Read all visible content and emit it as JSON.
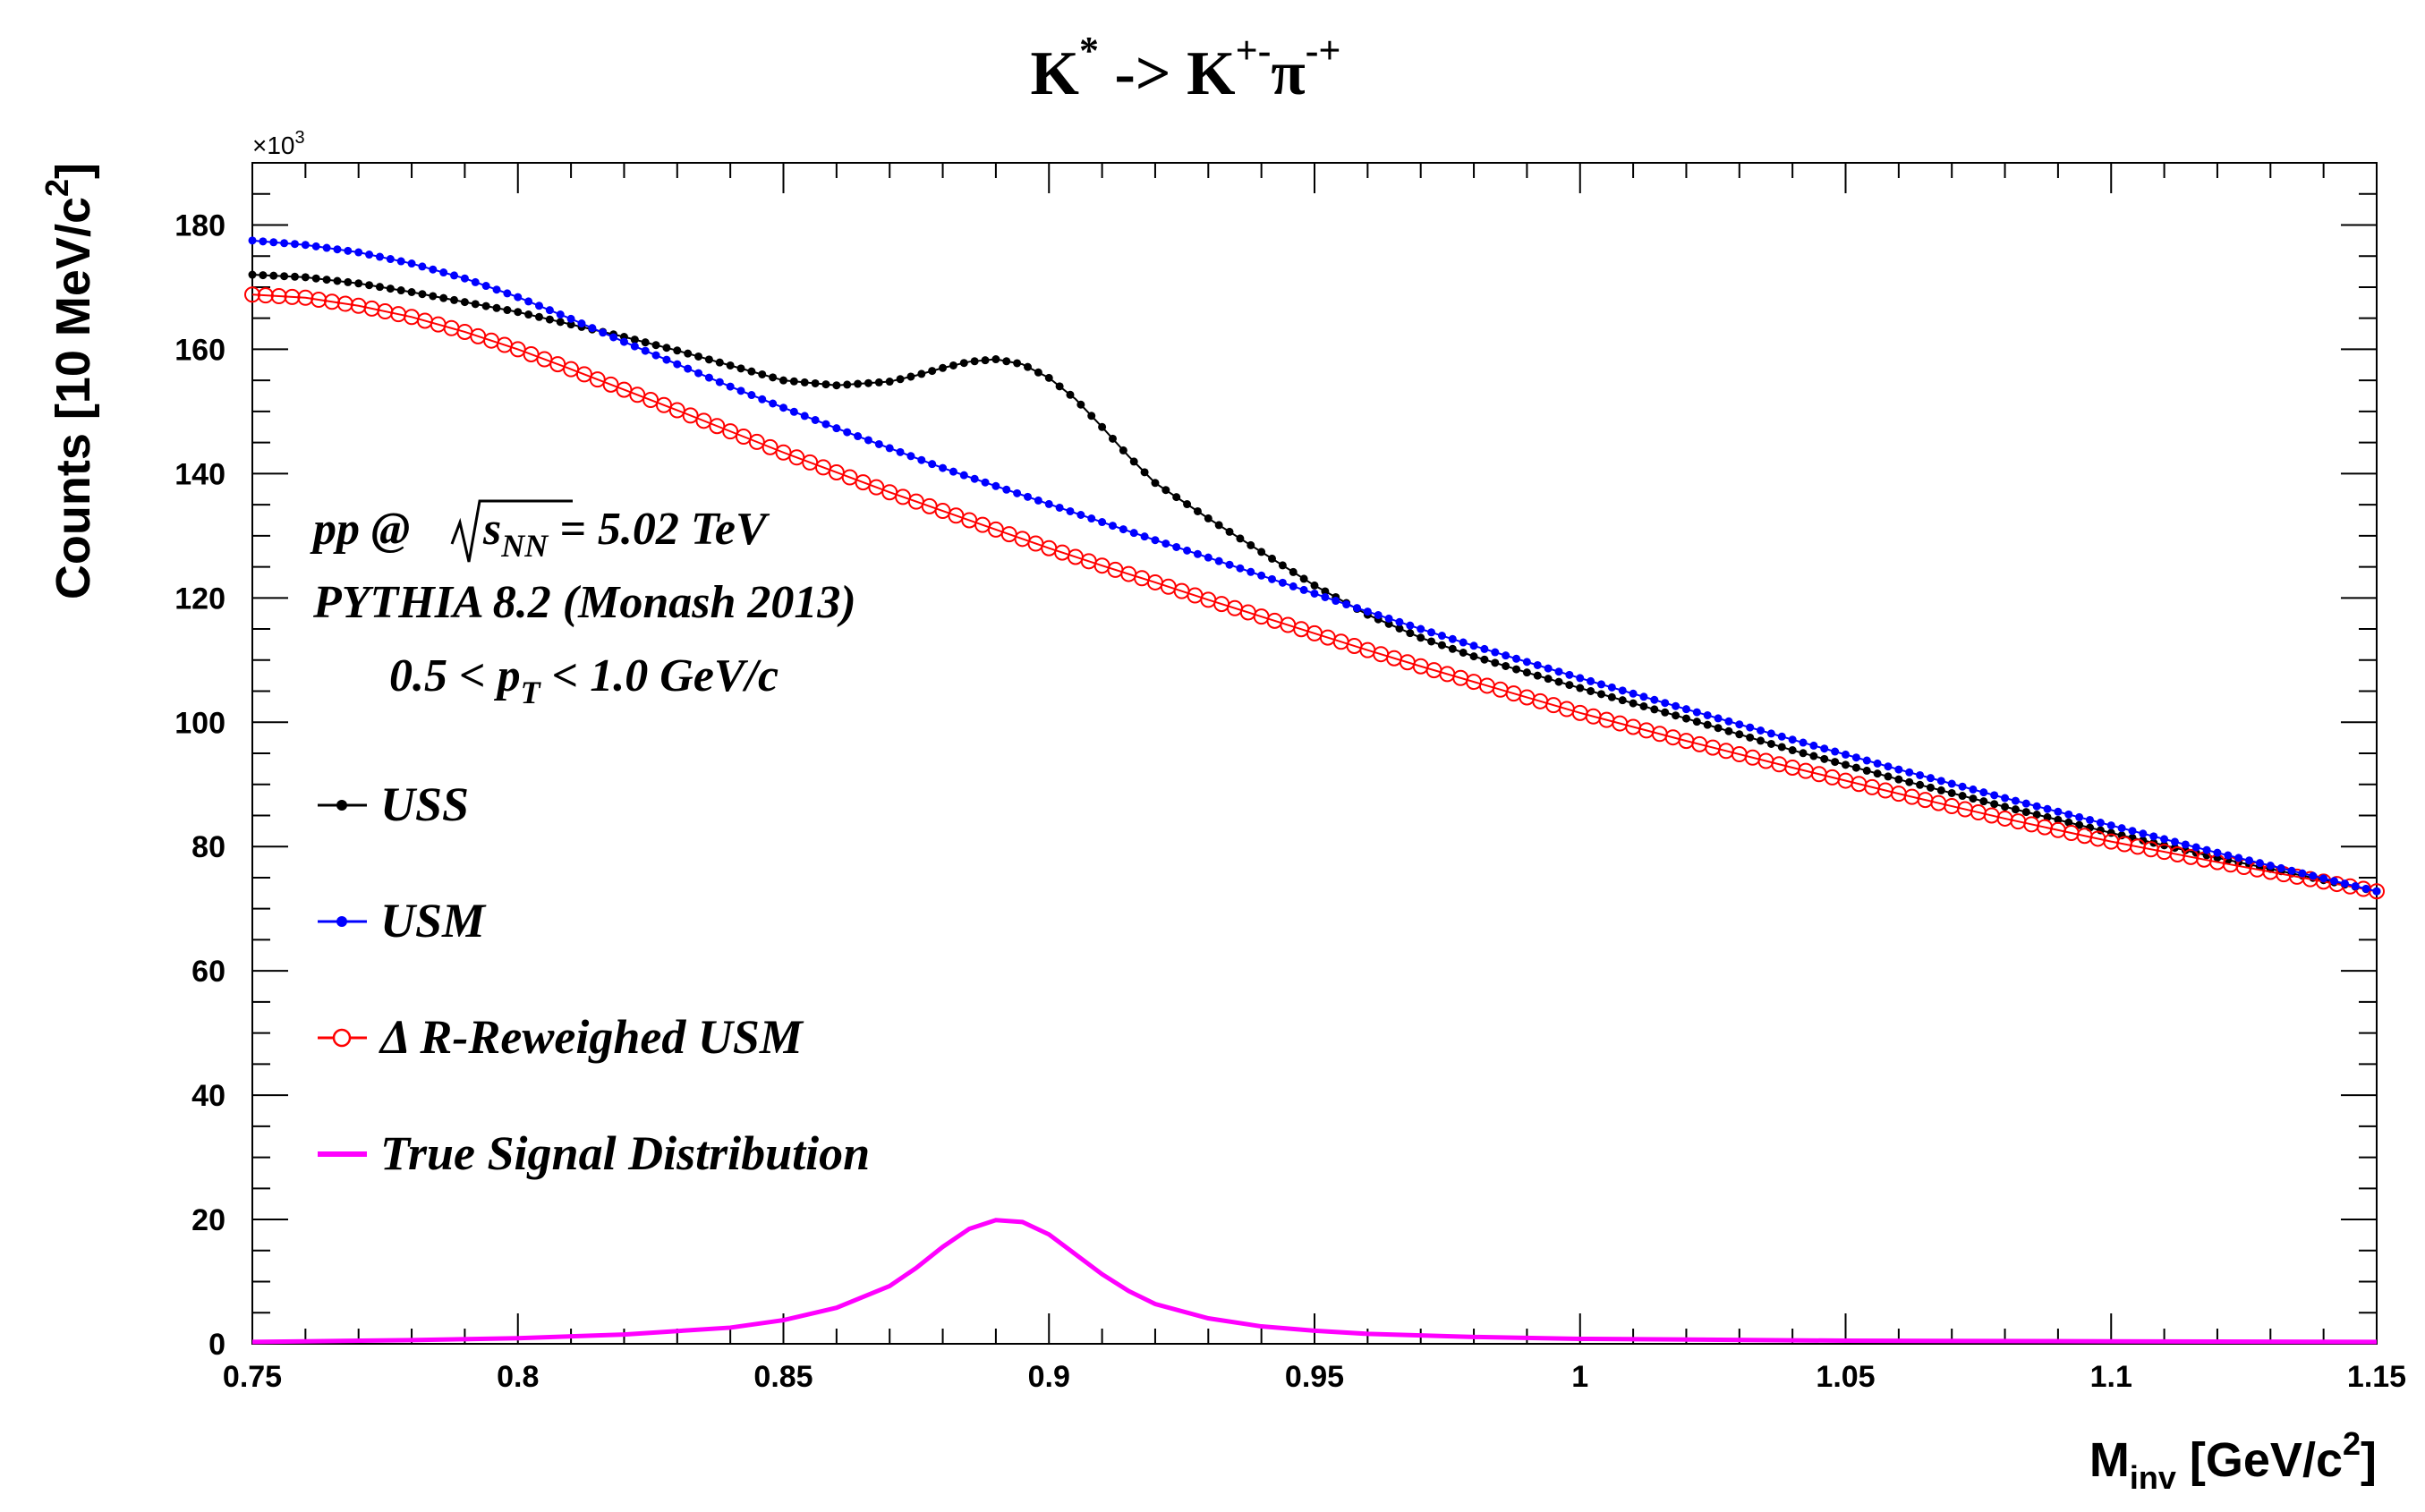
{
  "chart_data": {
    "type": "line",
    "title": {
      "main": "K",
      "sup": "*",
      "arrow": " -> K",
      "sup2": "+-",
      "pi": "π",
      "sup3": "-+"
    },
    "xlabel": {
      "main": "M",
      "sub": "inv",
      "unit_start": " [GeV/c",
      "unit_sup": "2",
      "unit_end": "]"
    },
    "ylabel": {
      "main": "Counts [10 MeV/c",
      "sup": "2",
      "end": "]"
    },
    "y_multiplier": {
      "base": "×10",
      "exp": "3"
    },
    "xlim": [
      0.75,
      1.15
    ],
    "ylim": [
      0,
      190
    ],
    "x_ticks": [
      0.75,
      0.8,
      0.85,
      0.9,
      0.95,
      1.0,
      1.05,
      1.1,
      1.15
    ],
    "x_tick_labels": [
      "0.75",
      "0.8",
      "0.85",
      "0.9",
      "0.95",
      "1",
      "1.05",
      "1.1",
      "1.15"
    ],
    "y_ticks": [
      0,
      20,
      40,
      60,
      80,
      100,
      120,
      140,
      160,
      180
    ],
    "y_tick_labels": [
      "0",
      "20",
      "40",
      "60",
      "80",
      "100",
      "120",
      "140",
      "160",
      "180"
    ],
    "annotations": {
      "line1_pre": "pp @ ",
      "line1_sqrt_s": "s",
      "line1_sqrt_sub": "NN",
      "line1_post": " = 5.02 TeV",
      "line2": "PYTHIA 8.2 (Monash 2013)",
      "line3_pre": "0.5 < p",
      "line3_sub": "T",
      "line3_post": " < 1.0 GeV/c"
    },
    "legend": [
      {
        "label": "USS",
        "color": "#000000",
        "marker": "dot"
      },
      {
        "label": "USM",
        "color": "#0000ff",
        "marker": "dot"
      },
      {
        "label": "Δ R-Reweighed USM",
        "color": "#ff0000",
        "marker": "open-circle"
      },
      {
        "label": "True Signal Distribution",
        "color": "#ff00ff",
        "marker": "line"
      }
    ],
    "series": [
      {
        "name": "USS",
        "color": "#000000",
        "marker": "dot",
        "x": [
          0.75,
          0.76,
          0.77,
          0.78,
          0.79,
          0.8,
          0.81,
          0.82,
          0.83,
          0.84,
          0.85,
          0.86,
          0.87,
          0.875,
          0.88,
          0.885,
          0.89,
          0.895,
          0.9,
          0.905,
          0.91,
          0.915,
          0.92,
          0.93,
          0.94,
          0.95,
          0.96,
          0.97,
          0.98,
          0.99,
          1.0,
          1.02,
          1.04,
          1.06,
          1.08,
          1.1,
          1.12,
          1.15
        ],
        "y": [
          172.0,
          171.6,
          170.6,
          169.2,
          167.6,
          166.0,
          164.0,
          162.0,
          159.8,
          157.4,
          155.0,
          154.2,
          154.8,
          155.8,
          157.0,
          158.0,
          158.4,
          157.6,
          155.4,
          152.0,
          147.5,
          142.8,
          138.5,
          132.8,
          127.4,
          122.0,
          117.3,
          113.6,
          110.6,
          108.0,
          105.5,
          100.6,
          95.5,
          90.8,
          86.4,
          82.2,
          78.2,
          72.8
        ]
      },
      {
        "name": "USM",
        "color": "#0000ff",
        "marker": "dot",
        "x": [
          0.75,
          0.76,
          0.77,
          0.78,
          0.79,
          0.8,
          0.81,
          0.82,
          0.83,
          0.84,
          0.85,
          0.86,
          0.87,
          0.88,
          0.89,
          0.9,
          0.91,
          0.92,
          0.93,
          0.94,
          0.95,
          0.96,
          0.97,
          0.98,
          0.99,
          1.0,
          1.02,
          1.04,
          1.06,
          1.08,
          1.1,
          1.12,
          1.15
        ],
        "y": [
          177.5,
          176.8,
          175.6,
          173.8,
          171.4,
          168.4,
          164.9,
          161.2,
          157.6,
          154.0,
          150.6,
          147.3,
          144.1,
          140.9,
          138.0,
          135.1,
          132.2,
          129.3,
          126.5,
          123.6,
          120.7,
          117.8,
          115.0,
          112.3,
          109.7,
          107.1,
          102.1,
          97.2,
          92.4,
          87.8,
          83.4,
          79.0,
          72.8
        ]
      },
      {
        "name": "Δ R-Reweighed USM",
        "color": "#ff0000",
        "marker": "open-circle",
        "x": [
          0.75,
          0.76,
          0.77,
          0.78,
          0.79,
          0.8,
          0.81,
          0.82,
          0.83,
          0.84,
          0.85,
          0.86,
          0.87,
          0.88,
          0.89,
          0.9,
          0.91,
          0.92,
          0.93,
          0.94,
          0.95,
          0.96,
          0.97,
          0.98,
          0.99,
          1.0,
          1.02,
          1.04,
          1.06,
          1.08,
          1.1,
          1.12,
          1.15
        ],
        "y": [
          168.8,
          168.3,
          167.0,
          165.2,
          162.8,
          160.0,
          156.8,
          153.5,
          150.2,
          146.8,
          143.4,
          140.2,
          137.0,
          134.0,
          131.0,
          128.0,
          125.2,
          122.5,
          119.7,
          117.0,
          114.3,
          111.6,
          109.0,
          106.5,
          104.0,
          101.5,
          97.0,
          92.7,
          88.5,
          84.5,
          80.8,
          77.5,
          72.8
        ]
      },
      {
        "name": "True Signal Distribution",
        "color": "#ff00ff",
        "marker": "line",
        "x": [
          0.75,
          0.76,
          0.78,
          0.8,
          0.82,
          0.84,
          0.85,
          0.86,
          0.87,
          0.875,
          0.88,
          0.885,
          0.89,
          0.895,
          0.9,
          0.905,
          0.91,
          0.915,
          0.92,
          0.93,
          0.94,
          0.95,
          0.96,
          0.98,
          1.0,
          1.05,
          1.1,
          1.15
        ],
        "y": [
          0.3,
          0.4,
          0.6,
          0.9,
          1.5,
          2.6,
          3.8,
          5.8,
          9.3,
          12.2,
          15.6,
          18.5,
          19.9,
          19.6,
          17.6,
          14.4,
          11.2,
          8.5,
          6.4,
          4.1,
          2.8,
          2.1,
          1.6,
          1.1,
          0.8,
          0.5,
          0.4,
          0.3
        ]
      }
    ]
  }
}
